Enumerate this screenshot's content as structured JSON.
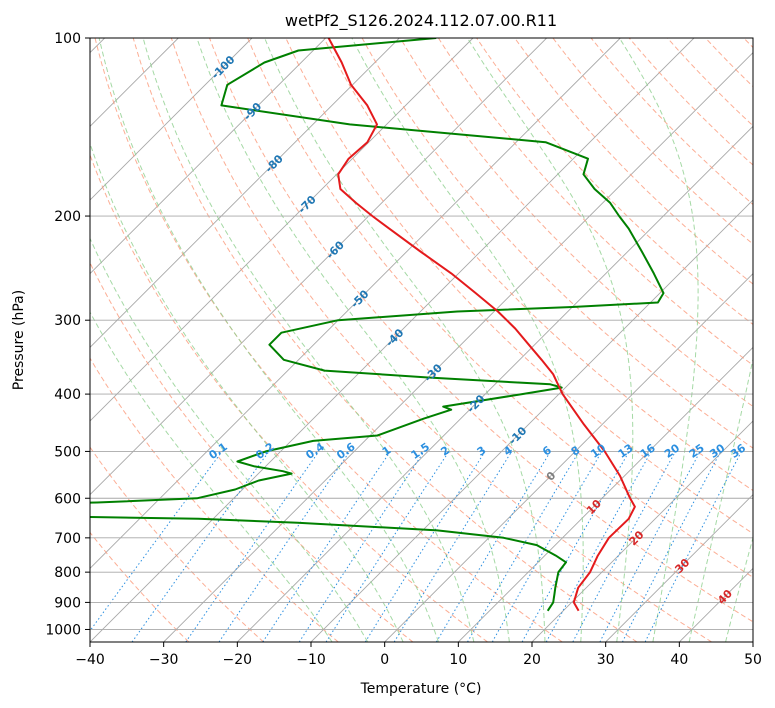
{
  "chart_data": {
    "type": "skew-t log-p",
    "title": "wetPf2_S126.2024.112.07.00.R11",
    "xlabel": "Temperature (°C)",
    "ylabel": "Pressure (hPa)",
    "xlim": [
      -40,
      50
    ],
    "ylim_hpa": [
      1050,
      100
    ],
    "log_pressure_axis": true,
    "skew_degrees": 45,
    "grid": true,
    "x_ticks": [
      "−40",
      "−30",
      "−20",
      "−10",
      "0",
      "10",
      "20",
      "30",
      "40",
      "50"
    ],
    "y_ticks": [
      {
        "p": 100,
        "label": "100"
      },
      {
        "p": 200,
        "label": "200"
      },
      {
        "p": 300,
        "label": "300"
      },
      {
        "p": 400,
        "label": "400"
      },
      {
        "p": 500,
        "label": "500"
      },
      {
        "p": 600,
        "label": "600"
      },
      {
        "p": 700,
        "label": "700"
      },
      {
        "p": 800,
        "label": "800"
      },
      {
        "p": 900,
        "label": "900"
      },
      {
        "p": 1000,
        "label": "1000"
      }
    ],
    "temperature": {
      "color": "#e41a1c",
      "points": [
        [
          930,
          22.1
        ],
        [
          900,
          20.3
        ],
        [
          850,
          18.9
        ],
        [
          800,
          18.4
        ],
        [
          750,
          17.2
        ],
        [
          700,
          16.3
        ],
        [
          650,
          16.4
        ],
        [
          620,
          15.6
        ],
        [
          600,
          13.8
        ],
        [
          550,
          9.4
        ],
        [
          500,
          4.0
        ],
        [
          450,
          -2.5
        ],
        [
          400,
          -9.5
        ],
        [
          370,
          -13.5
        ],
        [
          350,
          -17.0
        ],
        [
          330,
          -20.8
        ],
        [
          310,
          -24.8
        ],
        [
          290,
          -29.5
        ],
        [
          270,
          -35.0
        ],
        [
          250,
          -41.0
        ],
        [
          230,
          -48.0
        ],
        [
          210,
          -55.5
        ],
        [
          200,
          -59.5
        ],
        [
          190,
          -63.5
        ],
        [
          180,
          -67.5
        ],
        [
          170,
          -69.8
        ],
        [
          160,
          -70.5
        ],
        [
          150,
          -70.2
        ],
        [
          140,
          -71.3
        ],
        [
          130,
          -75.2
        ],
        [
          120,
          -80.2
        ],
        [
          110,
          -84.5
        ],
        [
          100,
          -89.6
        ]
      ]
    },
    "dewpoint": {
      "color": "#008000",
      "points": [
        [
          930,
          17.9
        ],
        [
          900,
          17.5
        ],
        [
          870,
          16.5
        ],
        [
          850,
          15.8
        ],
        [
          800,
          14.1
        ],
        [
          770,
          13.8
        ],
        [
          750,
          11.5
        ],
        [
          720,
          7.5
        ],
        [
          700,
          2.0
        ],
        [
          680,
          -8.0
        ],
        [
          660,
          -28.0
        ],
        [
          650,
          -42.0
        ],
        [
          640,
          -75.0
        ],
        [
          620,
          -80.0
        ],
        [
          610,
          -58.0
        ],
        [
          600,
          -45.0
        ],
        [
          580,
          -41.0
        ],
        [
          560,
          -39.0
        ],
        [
          545,
          -35.5
        ],
        [
          540,
          -37.0
        ],
        [
          530,
          -41.5
        ],
        [
          520,
          -44.5
        ],
        [
          500,
          -42.0
        ],
        [
          480,
          -37.0
        ],
        [
          470,
          -29.0
        ],
        [
          440,
          -25.0
        ],
        [
          425,
          -22.5
        ],
        [
          420,
          -24.0
        ],
        [
          400,
          -15.0
        ],
        [
          390,
          -10.5
        ],
        [
          385,
          -12.5
        ],
        [
          375,
          -30.0
        ],
        [
          365,
          -45.0
        ],
        [
          350,
          -52.0
        ],
        [
          330,
          -56.0
        ],
        [
          315,
          -56.0
        ],
        [
          300,
          -50.0
        ],
        [
          290,
          -35.0
        ],
        [
          285,
          -20.0
        ],
        [
          280,
          -9.0
        ],
        [
          270,
          -9.5
        ],
        [
          250,
          -13.5
        ],
        [
          230,
          -18.0
        ],
        [
          210,
          -23.0
        ],
        [
          200,
          -26.0
        ],
        [
          190,
          -29.0
        ],
        [
          180,
          -33.0
        ],
        [
          170,
          -36.5
        ],
        [
          160,
          -38.0
        ],
        [
          150,
          -46.0
        ],
        [
          140,
          -75.0
        ],
        [
          130,
          -95.0
        ],
        [
          120,
          -97.0
        ],
        [
          110,
          -95.0
        ],
        [
          105,
          -92.0
        ],
        [
          100,
          -75.0
        ]
      ]
    },
    "dry_adiabats_theta_c": [
      -30,
      -20,
      -10,
      0,
      10,
      20,
      30,
      40,
      50,
      60,
      70,
      80,
      90,
      100,
      110,
      120,
      130,
      140,
      150,
      160,
      170,
      180,
      190,
      200
    ],
    "moist_adiabats_t1000_c": [
      -10,
      -5,
      0,
      5,
      10,
      15,
      20,
      25,
      30,
      35,
      40,
      45
    ],
    "mixing_ratio_lines": [
      {
        "w": 0.1,
        "label": "0.1"
      },
      {
        "w": 0.2,
        "label": "0.2"
      },
      {
        "w": 0.4,
        "label": "0.4"
      },
      {
        "w": 0.6,
        "label": "0.6"
      },
      {
        "w": 1,
        "label": "1"
      },
      {
        "w": 1.5,
        "label": "1.5"
      },
      {
        "w": 2,
        "label": "2"
      },
      {
        "w": 3,
        "label": "3"
      },
      {
        "w": 4,
        "label": "4"
      },
      {
        "w": 6,
        "label": "6"
      },
      {
        "w": 8,
        "label": "8"
      },
      {
        "w": 10,
        "label": "10"
      },
      {
        "w": 13,
        "label": "13"
      },
      {
        "w": 16,
        "label": "16"
      },
      {
        "w": 20,
        "label": "20"
      },
      {
        "w": 25,
        "label": "25"
      },
      {
        "w": 30,
        "label": "30"
      },
      {
        "w": 36,
        "label": "36"
      }
    ],
    "isotherm_labels": [
      {
        "t": -100,
        "p": 112,
        "label": "-100"
      },
      {
        "t": -90,
        "p": 133,
        "label": "-90"
      },
      {
        "t": -80,
        "p": 163,
        "label": "-80"
      },
      {
        "t": -70,
        "p": 191,
        "label": "-70"
      },
      {
        "t": -60,
        "p": 228,
        "label": "-60"
      },
      {
        "t": -50,
        "p": 276,
        "label": "-50"
      },
      {
        "t": -40,
        "p": 321,
        "label": "-40"
      },
      {
        "t": -30,
        "p": 368,
        "label": "-30"
      },
      {
        "t": -20,
        "p": 415,
        "label": "-20"
      },
      {
        "t": -10,
        "p": 470,
        "label": "-10"
      },
      {
        "t": 0,
        "p": 550,
        "label": "0"
      },
      {
        "t": 10,
        "p": 620,
        "label": "10"
      },
      {
        "t": 20,
        "p": 700,
        "label": "20"
      },
      {
        "t": 30,
        "p": 780,
        "label": "30"
      },
      {
        "t": 40,
        "p": 880,
        "label": "40"
      }
    ],
    "colors": {
      "isotherm": "#a8a8a8",
      "dry_adiabat": "#fb9a7a",
      "moist_adiabat": "#8fcf8f",
      "mixing_ratio": "#2b8fe0",
      "isotherm_label_cold": "#1f77b4",
      "isotherm_label_zero": "#7f7f7f",
      "isotherm_label_warm": "#d62728",
      "mixing_label": "#2b8fe0",
      "ccl_curve": "#c8a57a"
    }
  }
}
